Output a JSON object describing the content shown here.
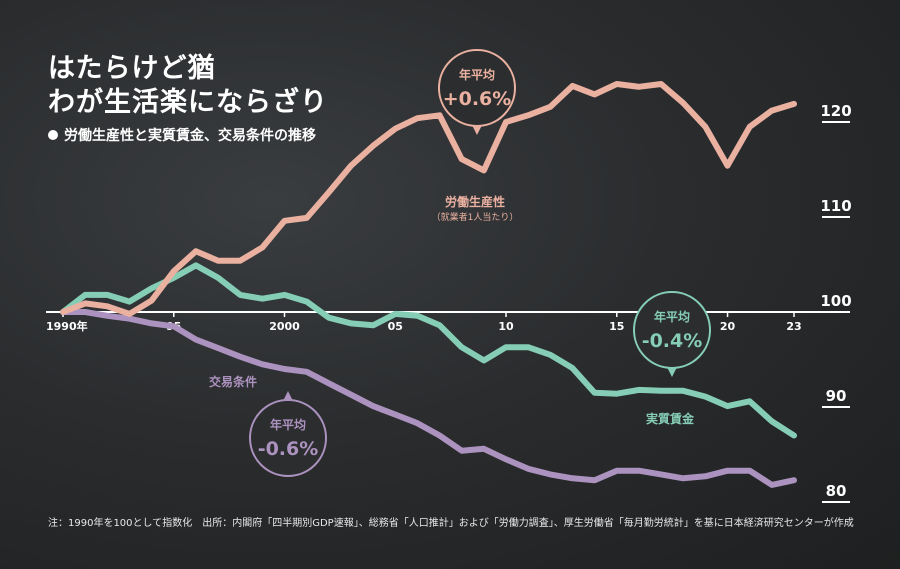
{
  "title_line1": "はたらけど猶",
  "title_line2": "わが生活楽にならざり",
  "subtitle": "労働生産性と実質賃金、交易条件の推移",
  "footnote": "注：1990年を100として指数化　出所：内閣府「四半期別GDP速報」、総務省「人口推計」および「労働力調査」、厚生労働省「毎月勤労統計」を基に日本経済研究センターが作成",
  "colors": {
    "productivity": "#eab0a0",
    "wage": "#86cdb5",
    "terms": "#ac92bf",
    "axis": "#ffffff"
  },
  "chart_data": {
    "type": "line",
    "xlim": [
      1990,
      2023
    ],
    "ylim": [
      80,
      120
    ],
    "y_ticks": [
      {
        "value": 120,
        "label": "120"
      },
      {
        "value": 110,
        "label": "110"
      },
      {
        "value": 100,
        "label": "100"
      },
      {
        "value": 90,
        "label": "90"
      },
      {
        "value": 80,
        "label": "80"
      }
    ],
    "x_ticks": [
      {
        "value": 1990,
        "label": "1990年"
      },
      {
        "value": 1995,
        "label": "95"
      },
      {
        "value": 2000,
        "label": "2000"
      },
      {
        "value": 2005,
        "label": "05"
      },
      {
        "value": 2010,
        "label": "10"
      },
      {
        "value": 2015,
        "label": "15"
      },
      {
        "value": 2020,
        "label": "20"
      },
      {
        "value": 2023,
        "label": "23"
      }
    ],
    "x": [
      1990,
      1991,
      1992,
      1993,
      1994,
      1995,
      1996,
      1997,
      1998,
      1999,
      2000,
      2001,
      2002,
      2003,
      2004,
      2005,
      2006,
      2007,
      2008,
      2009,
      2010,
      2011,
      2012,
      2013,
      2014,
      2015,
      2016,
      2017,
      2018,
      2019,
      2020,
      2021,
      2022,
      2023
    ],
    "series": [
      {
        "key": "productivity",
        "name": "労働生産性",
        "note": "（就業者1人当たり）",
        "values": [
          100.0,
          100.9,
          100.6,
          99.8,
          101.2,
          104.3,
          106.4,
          105.4,
          105.4,
          106.8,
          109.6,
          109.9,
          112.6,
          115.4,
          117.5,
          119.3,
          120.4,
          120.7,
          116.1,
          114.9,
          120.0,
          120.7,
          121.6,
          123.8,
          122.9,
          124.0,
          123.7,
          124.0,
          122.0,
          119.5,
          115.4,
          119.5,
          121.2,
          121.9
        ]
      },
      {
        "key": "wage",
        "name": "実質賃金",
        "note": "",
        "values": [
          100.0,
          101.8,
          101.8,
          101.1,
          102.5,
          103.6,
          104.9,
          103.6,
          101.8,
          101.4,
          101.8,
          101.1,
          99.4,
          98.8,
          98.6,
          99.8,
          99.6,
          98.6,
          96.3,
          94.9,
          96.3,
          96.3,
          95.5,
          94.1,
          91.5,
          91.4,
          91.8,
          91.7,
          91.7,
          91.1,
          90.1,
          90.6,
          88.5,
          87.0
        ]
      },
      {
        "key": "terms",
        "name": "交易条件",
        "note": "",
        "values": [
          100.0,
          100.0,
          99.6,
          99.3,
          98.8,
          98.5,
          97.1,
          96.2,
          95.3,
          94.5,
          94.0,
          93.7,
          92.5,
          91.3,
          90.1,
          89.2,
          88.3,
          87.0,
          85.4,
          85.6,
          84.5,
          83.5,
          82.9,
          82.5,
          82.3,
          83.3,
          83.3,
          82.9,
          82.5,
          82.7,
          83.3,
          83.3,
          81.8,
          82.3
        ]
      }
    ],
    "annotations": [
      {
        "series": "productivity",
        "label": "年平均",
        "value": "+0.6%"
      },
      {
        "series": "wage",
        "label": "年平均",
        "value": "-0.4%"
      },
      {
        "series": "terms",
        "label": "年平均",
        "value": "-0.6%"
      }
    ]
  }
}
